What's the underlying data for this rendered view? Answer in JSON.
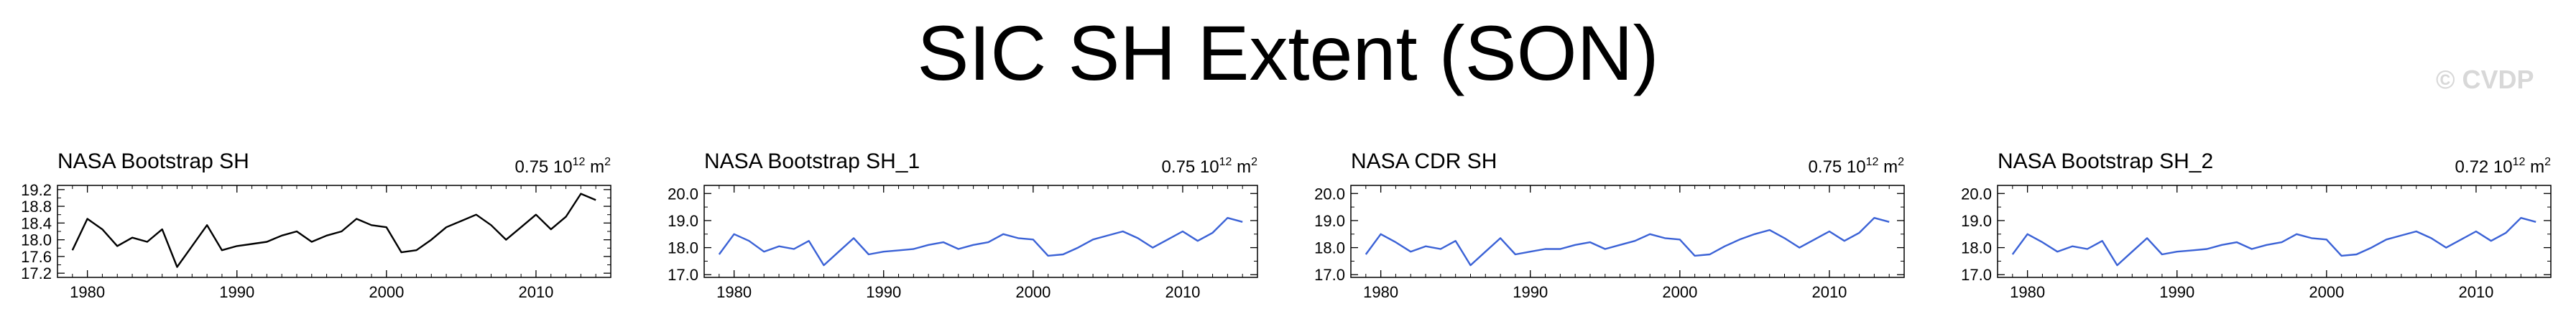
{
  "figure": {
    "title": "SIC SH Extent (SON)",
    "watermark": "© CVDP"
  },
  "chart_data": [
    {
      "type": "line",
      "title": "NASA Bootstrap SH",
      "scale_label": "0.75 10",
      "scale_exp": "12",
      "scale_unit": "m",
      "scale_unit_exp": "2",
      "color": "#000000",
      "xlim": [
        1978,
        2015
      ],
      "ylim": [
        17.1,
        19.3
      ],
      "xticks": [
        1980,
        1990,
        2000,
        2010
      ],
      "yticks": [
        17.2,
        17.6,
        18.0,
        18.4,
        18.8,
        19.2
      ],
      "ytick_labels": [
        "17.2",
        "17.6",
        "18.0",
        "18.4",
        "18.8",
        "19.2"
      ],
      "x": [
        1979,
        1980,
        1981,
        1982,
        1983,
        1984,
        1985,
        1986,
        1987,
        1988,
        1989,
        1990,
        1991,
        1992,
        1993,
        1994,
        1995,
        1996,
        1997,
        1998,
        1999,
        2000,
        2001,
        2002,
        2003,
        2004,
        2005,
        2006,
        2007,
        2008,
        2009,
        2010,
        2011,
        2012,
        2013,
        2014
      ],
      "values": [
        17.75,
        18.5,
        18.25,
        17.85,
        18.05,
        17.95,
        18.25,
        17.35,
        17.85,
        18.35,
        17.75,
        17.85,
        17.9,
        17.95,
        18.1,
        18.2,
        17.95,
        18.1,
        18.2,
        18.5,
        18.35,
        18.3,
        17.7,
        17.75,
        18.0,
        18.3,
        18.45,
        18.6,
        18.35,
        18.0,
        18.3,
        18.6,
        18.25,
        18.55,
        19.1,
        18.95
      ]
    },
    {
      "type": "line",
      "title": "NASA Bootstrap SH_1",
      "scale_label": "0.75 10",
      "scale_exp": "12",
      "scale_unit": "m",
      "scale_unit_exp": "2",
      "color": "#3b62d6",
      "xlim": [
        1978,
        2015
      ],
      "ylim": [
        16.9,
        20.3
      ],
      "xticks": [
        1980,
        1990,
        2000,
        2010
      ],
      "yticks": [
        17.0,
        18.0,
        19.0,
        20.0
      ],
      "ytick_labels": [
        "17.0",
        "18.0",
        "19.0",
        "20.0"
      ],
      "x": [
        1979,
        1980,
        1981,
        1982,
        1983,
        1984,
        1985,
        1986,
        1987,
        1988,
        1989,
        1990,
        1991,
        1992,
        1993,
        1994,
        1995,
        1996,
        1997,
        1998,
        1999,
        2000,
        2001,
        2002,
        2003,
        2004,
        2005,
        2006,
        2007,
        2008,
        2009,
        2010,
        2011,
        2012,
        2013,
        2014
      ],
      "values": [
        17.75,
        18.5,
        18.25,
        17.85,
        18.05,
        17.95,
        18.25,
        17.35,
        17.85,
        18.35,
        17.75,
        17.85,
        17.9,
        17.95,
        18.1,
        18.2,
        17.95,
        18.1,
        18.2,
        18.5,
        18.35,
        18.3,
        17.7,
        17.75,
        18.0,
        18.3,
        18.45,
        18.6,
        18.35,
        18.0,
        18.3,
        18.6,
        18.25,
        18.55,
        19.1,
        18.95
      ]
    },
    {
      "type": "line",
      "title": "NASA CDR SH",
      "scale_label": "0.75 10",
      "scale_exp": "12",
      "scale_unit": "m",
      "scale_unit_exp": "2",
      "color": "#3b62d6",
      "xlim": [
        1978,
        2015
      ],
      "ylim": [
        16.9,
        20.3
      ],
      "xticks": [
        1980,
        1990,
        2000,
        2010
      ],
      "yticks": [
        17.0,
        18.0,
        19.0,
        20.0
      ],
      "ytick_labels": [
        "17.0",
        "18.0",
        "19.0",
        "20.0"
      ],
      "x": [
        1979,
        1980,
        1981,
        1982,
        1983,
        1984,
        1985,
        1986,
        1987,
        1988,
        1989,
        1990,
        1991,
        1992,
        1993,
        1994,
        1995,
        1996,
        1997,
        1998,
        1999,
        2000,
        2001,
        2002,
        2003,
        2004,
        2005,
        2006,
        2007,
        2008,
        2009,
        2010,
        2011,
        2012,
        2013,
        2014
      ],
      "values": [
        17.75,
        18.5,
        18.2,
        17.85,
        18.05,
        17.95,
        18.25,
        17.35,
        17.85,
        18.35,
        17.75,
        17.85,
        17.95,
        17.95,
        18.1,
        18.2,
        17.95,
        18.1,
        18.25,
        18.5,
        18.35,
        18.3,
        17.7,
        17.75,
        18.05,
        18.3,
        18.5,
        18.65,
        18.35,
        18.0,
        18.3,
        18.6,
        18.25,
        18.55,
        19.1,
        18.95
      ]
    },
    {
      "type": "line",
      "title": "NASA Bootstrap SH_2",
      "scale_label": "0.72 10",
      "scale_exp": "12",
      "scale_unit": "m",
      "scale_unit_exp": "2",
      "color": "#3b62d6",
      "xlim": [
        1978,
        2015
      ],
      "ylim": [
        16.9,
        20.3
      ],
      "xticks": [
        1980,
        1990,
        2000,
        2010
      ],
      "yticks": [
        17.0,
        18.0,
        19.0,
        20.0
      ],
      "ytick_labels": [
        "17.0",
        "18.0",
        "19.0",
        "20.0"
      ],
      "x": [
        1979,
        1980,
        1981,
        1982,
        1983,
        1984,
        1985,
        1986,
        1987,
        1988,
        1989,
        1990,
        1991,
        1992,
        1993,
        1994,
        1995,
        1996,
        1997,
        1998,
        1999,
        2000,
        2001,
        2002,
        2003,
        2004,
        2005,
        2006,
        2007,
        2008,
        2009,
        2010,
        2011,
        2012,
        2013,
        2014
      ],
      "values": [
        17.75,
        18.5,
        18.2,
        17.85,
        18.05,
        17.95,
        18.25,
        17.35,
        17.85,
        18.35,
        17.75,
        17.85,
        17.9,
        17.95,
        18.1,
        18.2,
        17.95,
        18.1,
        18.2,
        18.5,
        18.35,
        18.3,
        17.7,
        17.75,
        18.0,
        18.3,
        18.45,
        18.6,
        18.35,
        18.0,
        18.3,
        18.6,
        18.25,
        18.55,
        19.1,
        18.95
      ]
    }
  ]
}
